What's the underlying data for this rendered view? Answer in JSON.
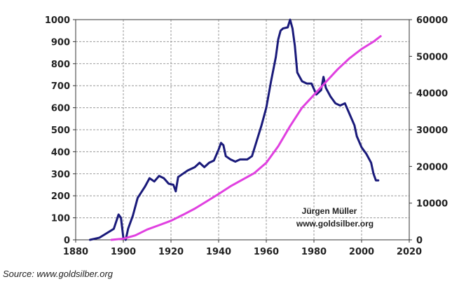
{
  "chart_data": {
    "type": "line",
    "title": "",
    "xlabel": "",
    "ylabel_left": "",
    "ylabel_right": "",
    "xlim": [
      1880,
      2020
    ],
    "ylim_left": [
      0,
      1000
    ],
    "ylim_right": [
      0,
      60000
    ],
    "x_ticks": [
      1880,
      1900,
      1920,
      1940,
      1960,
      1980,
      2000,
      2020
    ],
    "y_ticks_left": [
      0,
      100,
      200,
      300,
      400,
      500,
      600,
      700,
      800,
      900,
      1000
    ],
    "y_ticks_right": [
      0,
      10000,
      20000,
      30000,
      40000,
      50000,
      60000
    ],
    "grid": true,
    "legend": "none",
    "series": [
      {
        "axis": "left",
        "color": "#1a1a7a",
        "points": [
          [
            1886,
            0
          ],
          [
            1890,
            10
          ],
          [
            1893,
            30
          ],
          [
            1896,
            50
          ],
          [
            1898,
            115
          ],
          [
            1899,
            100
          ],
          [
            1900,
            10
          ],
          [
            1901,
            0
          ],
          [
            1902,
            50
          ],
          [
            1904,
            110
          ],
          [
            1906,
            190
          ],
          [
            1909,
            240
          ],
          [
            1911,
            280
          ],
          [
            1913,
            265
          ],
          [
            1915,
            290
          ],
          [
            1917,
            280
          ],
          [
            1919,
            255
          ],
          [
            1921,
            250
          ],
          [
            1922,
            220
          ],
          [
            1923,
            285
          ],
          [
            1925,
            300
          ],
          [
            1927,
            315
          ],
          [
            1930,
            330
          ],
          [
            1932,
            350
          ],
          [
            1934,
            330
          ],
          [
            1936,
            350
          ],
          [
            1938,
            360
          ],
          [
            1940,
            410
          ],
          [
            1941,
            440
          ],
          [
            1942,
            430
          ],
          [
            1943,
            380
          ],
          [
            1945,
            365
          ],
          [
            1947,
            355
          ],
          [
            1949,
            365
          ],
          [
            1952,
            365
          ],
          [
            1954,
            380
          ],
          [
            1956,
            450
          ],
          [
            1958,
            520
          ],
          [
            1960,
            600
          ],
          [
            1962,
            720
          ],
          [
            1964,
            830
          ],
          [
            1965,
            910
          ],
          [
            1966,
            950
          ],
          [
            1967,
            960
          ],
          [
            1969,
            965
          ],
          [
            1970,
            1000
          ],
          [
            1971,
            960
          ],
          [
            1972,
            880
          ],
          [
            1973,
            760
          ],
          [
            1975,
            720
          ],
          [
            1977,
            710
          ],
          [
            1979,
            710
          ],
          [
            1981,
            660
          ],
          [
            1983,
            680
          ],
          [
            1984,
            740
          ],
          [
            1985,
            690
          ],
          [
            1987,
            650
          ],
          [
            1989,
            620
          ],
          [
            1991,
            610
          ],
          [
            1993,
            620
          ],
          [
            1995,
            570
          ],
          [
            1997,
            520
          ],
          [
            1998,
            470
          ],
          [
            2000,
            420
          ],
          [
            2002,
            390
          ],
          [
            2004,
            350
          ],
          [
            2005,
            300
          ],
          [
            2006,
            270
          ],
          [
            2007,
            270
          ]
        ]
      },
      {
        "axis": "right",
        "color": "#e040e0",
        "points": [
          [
            1895,
            0
          ],
          [
            1900,
            300
          ],
          [
            1905,
            1200
          ],
          [
            1910,
            2800
          ],
          [
            1915,
            4000
          ],
          [
            1920,
            5200
          ],
          [
            1925,
            6800
          ],
          [
            1930,
            8500
          ],
          [
            1935,
            10500
          ],
          [
            1940,
            12500
          ],
          [
            1945,
            14600
          ],
          [
            1950,
            16400
          ],
          [
            1955,
            18200
          ],
          [
            1960,
            21000
          ],
          [
            1965,
            25500
          ],
          [
            1970,
            31000
          ],
          [
            1975,
            36000
          ],
          [
            1980,
            39500
          ],
          [
            1985,
            43000
          ],
          [
            1990,
            46500
          ],
          [
            1995,
            49500
          ],
          [
            2000,
            52000
          ],
          [
            2005,
            54000
          ],
          [
            2008,
            55500
          ]
        ]
      }
    ],
    "annotations": [
      "Jürgen Müller",
      "www.goldsilber.org"
    ]
  },
  "source": "Source: www.goldsilber.org"
}
